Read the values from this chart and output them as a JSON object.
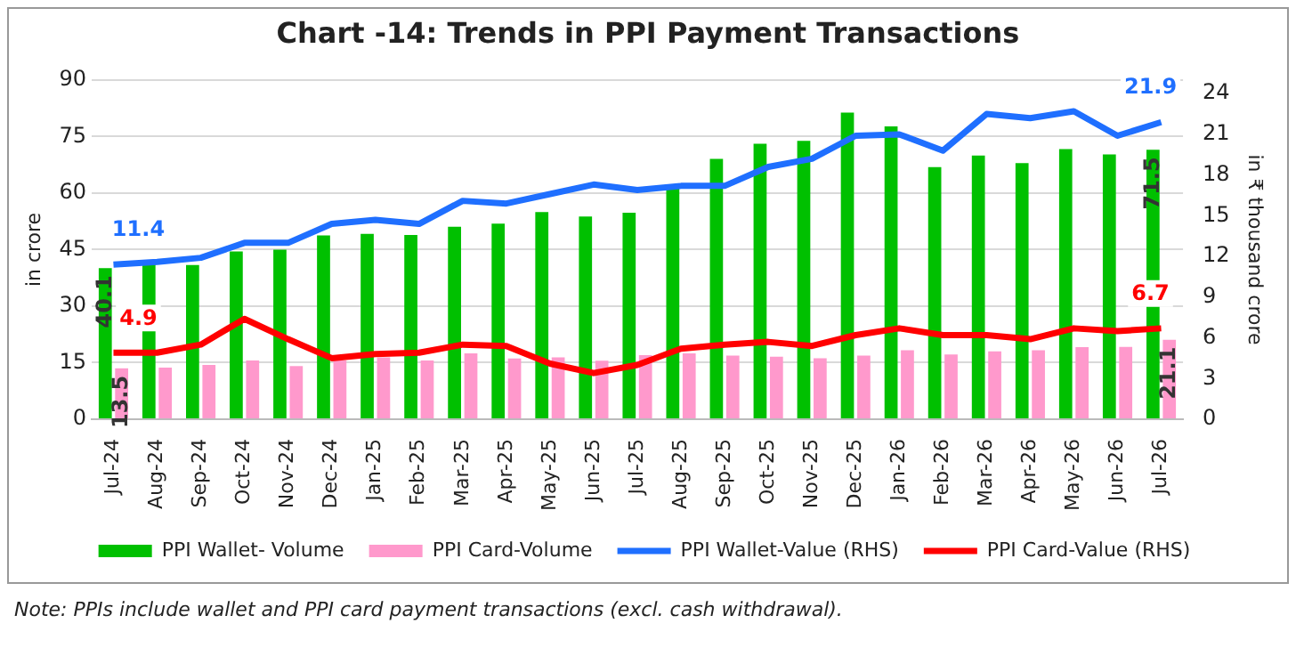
{
  "chart_data": {
    "type": "bar",
    "title": "Chart -14: Trends in PPI Payment Transactions",
    "ylabel": "in crore",
    "y2label": "in ₹ thousand crore",
    "categories": [
      "Jul-24",
      "Aug-24",
      "Sep-24",
      "Oct-24",
      "Nov-24",
      "Dec-24",
      "Jan-25",
      "Feb-25",
      "Mar-25",
      "Apr-25",
      "May-25",
      "Jun-25",
      "Jul-25",
      "Aug-25",
      "Sep-25",
      "Oct-25",
      "Nov-25",
      "Dec-25",
      "Jan-26",
      "Feb-26",
      "Mar-26",
      "Apr-26",
      "May-26",
      "Jun-26",
      "Jul-26"
    ],
    "series": [
      {
        "name": "PPI Wallet- Volume",
        "color": "#00c000",
        "values": [
          40.1,
          41.1,
          40.9,
          44.5,
          45,
          48.8,
          49.2,
          48.9,
          51.1,
          51.9,
          55,
          53.8,
          54.8,
          62,
          69.1,
          73.1,
          73.9,
          81.4,
          77.7,
          66.9,
          70,
          68,
          71.7,
          70.3,
          71.5
        ],
        "value_labels": [
          "40.1",
          null,
          null,
          null,
          null,
          null,
          null,
          null,
          null,
          null,
          null,
          null,
          null,
          null,
          null,
          null,
          null,
          null,
          null,
          null,
          null,
          null,
          null,
          null,
          "71.5"
        ]
      },
      {
        "name": "PPI Card-Volume",
        "color": "#ff99cc",
        "values": [
          13.5,
          13.7,
          14.4,
          15.6,
          14.1,
          15.6,
          16.4,
          15.6,
          17.5,
          16.1,
          16.4,
          15.5,
          17,
          17.5,
          16.9,
          16.6,
          16.2,
          16.9,
          18.3,
          17.2,
          18,
          18.3,
          19.1,
          19.2,
          21.1
        ],
        "value_labels": [
          "13.5",
          null,
          null,
          null,
          null,
          null,
          null,
          null,
          null,
          null,
          null,
          null,
          null,
          null,
          null,
          null,
          null,
          null,
          null,
          null,
          null,
          null,
          null,
          null,
          "21.1"
        ]
      },
      {
        "name": "PPI Wallet-Value (RHS)",
        "type": "line",
        "axis": "y2",
        "color": "#1f6fff",
        "values": [
          11.4,
          11.6,
          11.9,
          13,
          13,
          14.4,
          14.7,
          14.4,
          16.1,
          15.9,
          16.6,
          17.3,
          16.9,
          17.2,
          17.2,
          18.6,
          19.2,
          20.9,
          21,
          19.8,
          22.5,
          22.2,
          22.7,
          20.9,
          21.9
        ],
        "value_labels": [
          "11.4",
          null,
          null,
          null,
          null,
          null,
          null,
          null,
          null,
          null,
          null,
          null,
          null,
          null,
          null,
          null,
          null,
          null,
          null,
          null,
          null,
          null,
          null,
          null,
          "21.9"
        ]
      },
      {
        "name": "PPI Card-Value (RHS)",
        "type": "line",
        "axis": "y2",
        "color": "#ff0000",
        "values": [
          4.9,
          4.9,
          5.5,
          7.4,
          5.9,
          4.5,
          4.8,
          4.9,
          5.5,
          5.4,
          4.1,
          3.4,
          4,
          5.2,
          5.5,
          5.7,
          5.4,
          6.2,
          6.7,
          6.2,
          6.2,
          5.9,
          6.7,
          6.5,
          6.7
        ],
        "value_labels": [
          "4.9",
          null,
          null,
          null,
          null,
          null,
          null,
          null,
          null,
          null,
          null,
          null,
          null,
          null,
          null,
          null,
          null,
          null,
          null,
          null,
          null,
          null,
          null,
          null,
          "6.7"
        ]
      }
    ],
    "ylim": [
      0,
      90
    ],
    "yticks": [
      0,
      15,
      30,
      45,
      60,
      75,
      90
    ],
    "y2lim": [
      0,
      25
    ],
    "y2ticks": [
      0,
      3,
      6,
      9,
      12,
      15,
      18,
      21,
      24
    ],
    "grid": "y",
    "legend": "bottom",
    "marker": "none",
    "line_style": "solid",
    "annotations": [
      "Note: PPIs include wallet and PPI card payment transactions (excl. cash withdrawal)."
    ]
  }
}
